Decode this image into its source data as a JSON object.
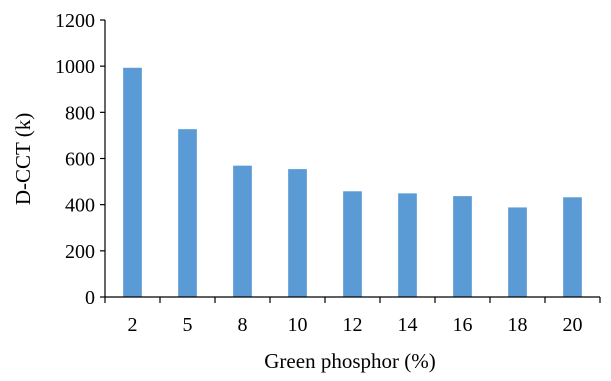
{
  "chart_data": {
    "type": "bar",
    "title": "",
    "xlabel": "Green phosphor (%)",
    "ylabel": "D-CCT (k)",
    "categories": [
      "2",
      "5",
      "8",
      "10",
      "12",
      "14",
      "16",
      "18",
      "20"
    ],
    "values": [
      993,
      727,
      569,
      554,
      458,
      449,
      437,
      388,
      432
    ],
    "ylim": [
      0,
      1200
    ],
    "yticks": [
      "0",
      "200",
      "400",
      "600",
      "800",
      "1000",
      "1200"
    ],
    "grid": false,
    "legend": "none",
    "bar_color": "#5b9bd5",
    "axis_color": "#000000"
  }
}
